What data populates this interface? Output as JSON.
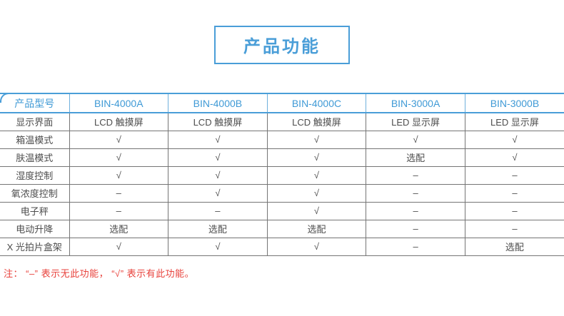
{
  "title": "产品功能",
  "table": {
    "header": [
      "产品型号",
      "BIN-4000A",
      "BIN-4000B",
      "BIN-4000C",
      "BIN-3000A",
      "BIN-3000B"
    ],
    "rows": [
      {
        "label": "显示界面",
        "values": [
          "LCD 触摸屏",
          "LCD 触摸屏",
          "LCD 触摸屏",
          "LED 显示屏",
          "LED 显示屏"
        ]
      },
      {
        "label": "箱温模式",
        "values": [
          "√",
          "√",
          "√",
          "√",
          "√"
        ]
      },
      {
        "label": "肤温模式",
        "values": [
          "√",
          "√",
          "√",
          "选配",
          "√"
        ]
      },
      {
        "label": "湿度控制",
        "values": [
          "√",
          "√",
          "√",
          "–",
          "–"
        ]
      },
      {
        "label": "氧浓度控制",
        "values": [
          "–",
          "√",
          "√",
          "–",
          "–"
        ]
      },
      {
        "label": "电子秤",
        "values": [
          "–",
          "–",
          "√",
          "–",
          "–"
        ]
      },
      {
        "label": "电动升降",
        "values": [
          "选配",
          "选配",
          "选配",
          "–",
          "–"
        ]
      },
      {
        "label": "X 光拍片盒架",
        "values": [
          "√",
          "√",
          "√",
          "–",
          "选配"
        ]
      }
    ],
    "legend": {
      "check_symbol": "√",
      "dash_symbol": "–"
    }
  },
  "note": "注： “–” 表示无此功能， “√” 表示有此功能。",
  "colors": {
    "accent_blue": "#4a9ed8",
    "note_red": "#e8423c",
    "body_text": "#4d4d4d",
    "grid_gray": "#757575"
  }
}
